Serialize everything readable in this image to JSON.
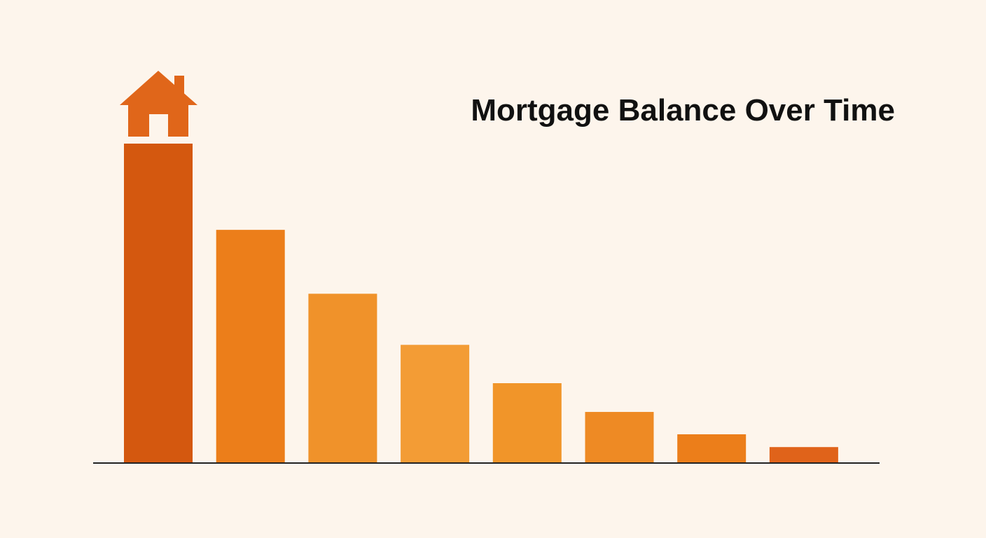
{
  "chart_data": {
    "type": "bar",
    "title": "Mortgage Balance Over Time",
    "values": [
      100,
      73,
      53,
      37,
      25,
      16,
      9,
      5
    ],
    "colors": [
      "#d4580f",
      "#ec7e1a",
      "#f0922a",
      "#f39c35",
      "#f19529",
      "#ee8a24",
      "#ec7e1a",
      "#e0631a"
    ],
    "ylim": [
      0,
      100
    ]
  }
}
